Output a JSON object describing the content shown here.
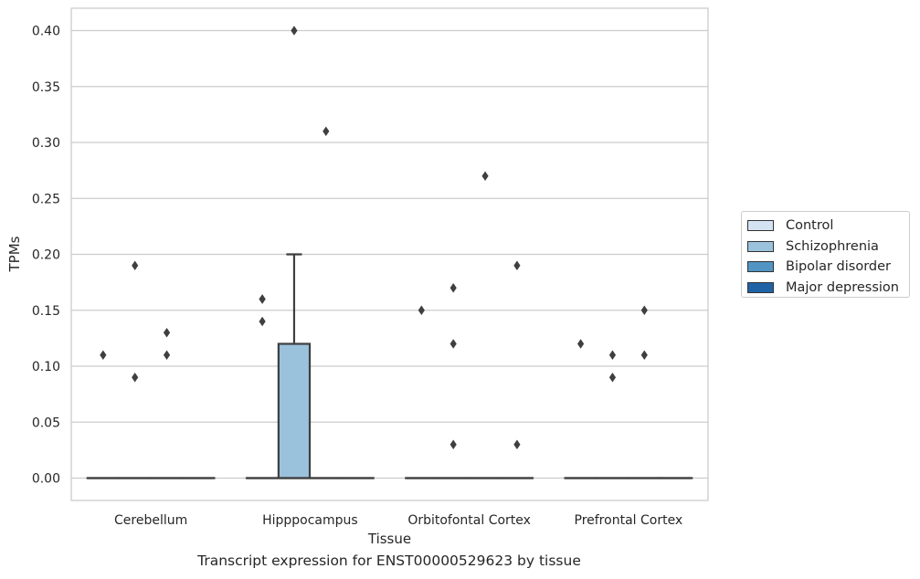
{
  "chart_data": {
    "type": "box",
    "xlabel": "Tissue",
    "ylabel": "TPMs",
    "caption": "Transcript expression for ENST00000529623 by tissue",
    "categories": [
      "Cerebellum",
      "Hipppocampus",
      "Orbitofontal Cortex",
      "Prefrontal Cortex"
    ],
    "ylim": [
      -0.02,
      0.42
    ],
    "yticks": [
      "0.00",
      "0.05",
      "0.10",
      "0.15",
      "0.20",
      "0.25",
      "0.30",
      "0.35",
      "0.40"
    ],
    "grid": true,
    "legend_position": "right",
    "series": [
      {
        "name": "Control",
        "color": "#d4e3f1",
        "boxes": [
          {
            "q1": 0,
            "median": 0,
            "q3": 0,
            "whisker_low": 0,
            "whisker_high": 0,
            "outliers": [
              0.11
            ]
          },
          {
            "q1": 0,
            "median": 0,
            "q3": 0,
            "whisker_low": 0,
            "whisker_high": 0,
            "outliers": [
              0.14,
              0.16,
              0.16
            ]
          },
          {
            "q1": 0,
            "median": 0,
            "q3": 0,
            "whisker_low": 0,
            "whisker_high": 0,
            "outliers": [
              0.15
            ]
          },
          {
            "q1": 0,
            "median": 0,
            "q3": 0,
            "whisker_low": 0,
            "whisker_high": 0,
            "outliers": [
              0.12
            ]
          }
        ]
      },
      {
        "name": "Schizophrenia",
        "color": "#9bc2dc",
        "boxes": [
          {
            "q1": 0,
            "median": 0,
            "q3": 0,
            "whisker_low": 0,
            "whisker_high": 0,
            "outliers": [
              0.09,
              0.19
            ]
          },
          {
            "q1": 0,
            "median": 0,
            "q3": 0.12,
            "whisker_low": 0,
            "whisker_high": 0.2,
            "outliers": [
              0.4
            ]
          },
          {
            "q1": 0,
            "median": 0,
            "q3": 0,
            "whisker_low": 0,
            "whisker_high": 0,
            "outliers": [
              0.03,
              0.12,
              0.17
            ]
          },
          {
            "q1": 0,
            "median": 0,
            "q3": 0,
            "whisker_low": 0,
            "whisker_high": 0,
            "outliers": [
              0.09,
              0.11
            ]
          }
        ]
      },
      {
        "name": "Bipolar disorder",
        "color": "#5295c4",
        "boxes": [
          {
            "q1": 0,
            "median": 0,
            "q3": 0,
            "whisker_low": 0,
            "whisker_high": 0,
            "outliers": [
              0.11,
              0.13
            ]
          },
          {
            "q1": 0,
            "median": 0,
            "q3": 0,
            "whisker_low": 0,
            "whisker_high": 0,
            "outliers": [
              0.31
            ]
          },
          {
            "q1": 0,
            "median": 0,
            "q3": 0,
            "whisker_low": 0,
            "whisker_high": 0,
            "outliers": [
              0.27
            ]
          },
          {
            "q1": 0,
            "median": 0,
            "q3": 0,
            "whisker_low": 0,
            "whisker_high": 0,
            "outliers": [
              0.11,
              0.15
            ]
          }
        ]
      },
      {
        "name": "Major depression",
        "color": "#1f63a6",
        "boxes": [
          {
            "q1": 0,
            "median": 0,
            "q3": 0,
            "whisker_low": 0,
            "whisker_high": 0,
            "outliers": []
          },
          {
            "q1": 0,
            "median": 0,
            "q3": 0,
            "whisker_low": 0,
            "whisker_high": 0,
            "outliers": []
          },
          {
            "q1": 0,
            "median": 0,
            "q3": 0,
            "whisker_low": 0,
            "whisker_high": 0,
            "outliers": [
              0.03,
              0.19
            ]
          },
          {
            "q1": 0,
            "median": 0,
            "q3": 0,
            "whisker_low": 0,
            "whisker_high": 0,
            "outliers": []
          }
        ]
      }
    ]
  }
}
